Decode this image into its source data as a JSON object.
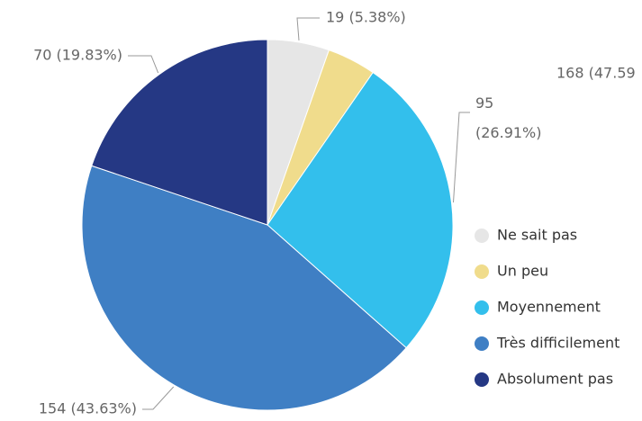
{
  "chart_data": {
    "type": "pie",
    "categories": [
      "Ne sait pas",
      "Un peu",
      "Moyennement",
      "Très difficilement",
      "Absolument pas"
    ],
    "values": [
      19,
      15,
      95,
      154,
      70
    ],
    "value_labels": [
      "19 (5.38%)",
      null,
      "95 (26.91%)",
      "154 (43.63%)",
      "70 (19.83%)"
    ],
    "colors": [
      "#e6e6e6",
      "#f0dc8c",
      "#33bfec",
      "#3f7fc4",
      "#253884"
    ],
    "legend": "right",
    "annotations": [
      "168 (47.59"
    ]
  }
}
